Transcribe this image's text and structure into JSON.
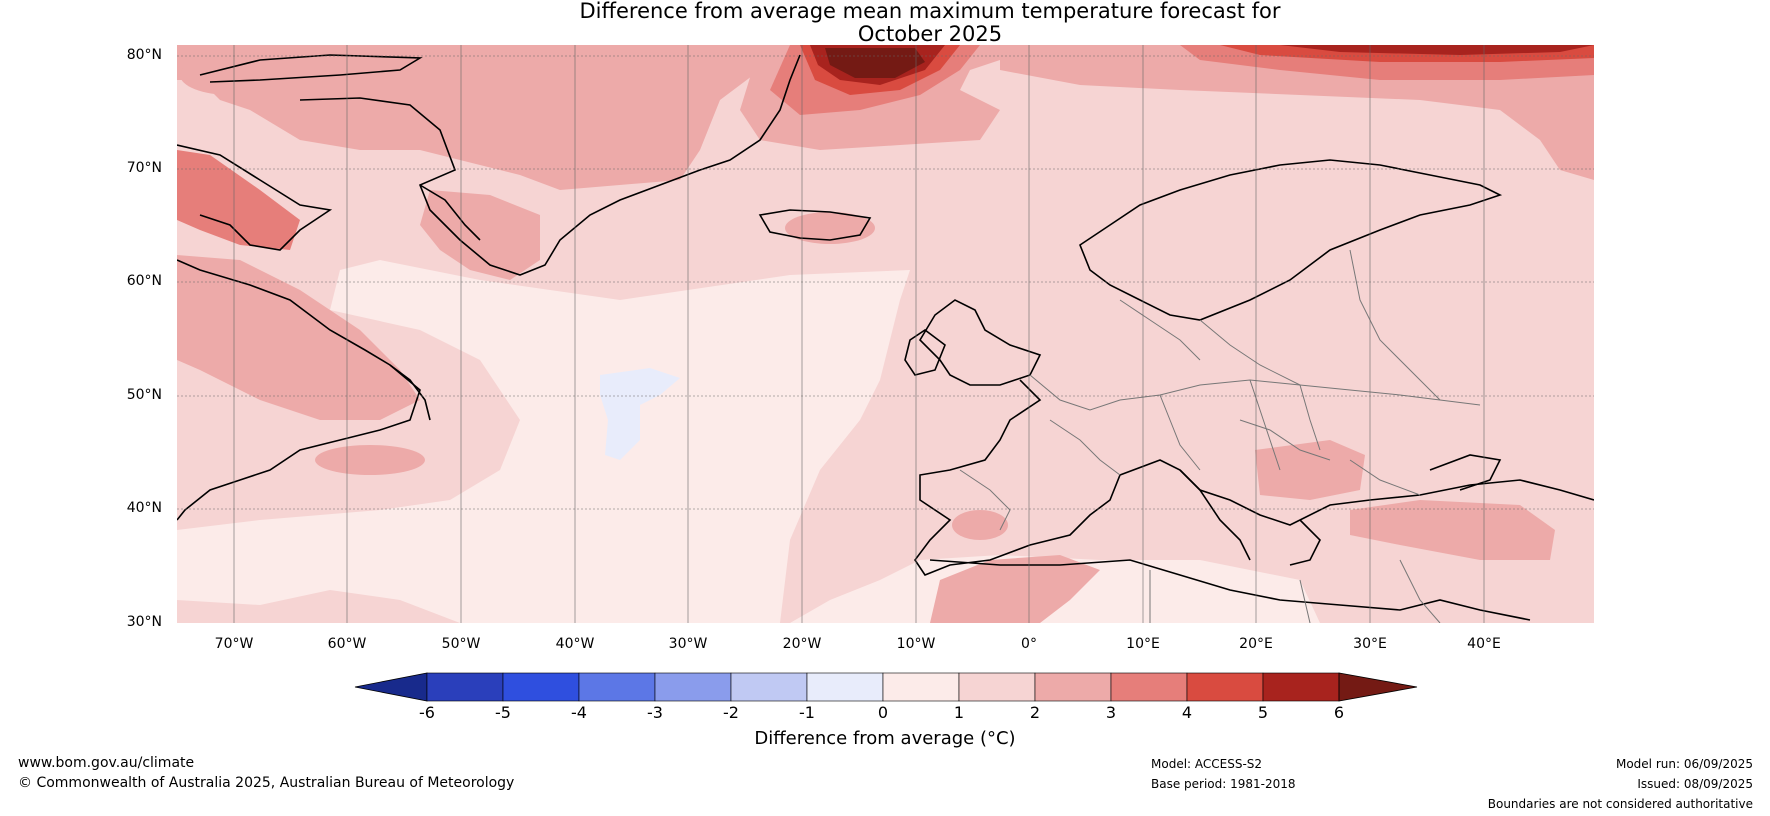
{
  "title_line1": "Difference from average mean maximum temperature forecast for",
  "title_line2": "October 2025",
  "lat_labels": [
    "80°N",
    "70°N",
    "60°N",
    "50°N",
    "40°N",
    "30°N"
  ],
  "lon_labels": [
    "70°W",
    "60°W",
    "50°W",
    "40°W",
    "30°W",
    "20°W",
    "10°W",
    "0°",
    "10°E",
    "20°E",
    "30°E",
    "40°E"
  ],
  "colorbar": {
    "label": "Difference from average (°C)",
    "ticks": [
      "-6",
      "-5",
      "-4",
      "-3",
      "-2",
      "-1",
      "0",
      "1",
      "2",
      "3",
      "4",
      "5",
      "6"
    ],
    "colors": [
      "#182a8c",
      "#2a3fbb",
      "#2f4fdf",
      "#5c77e6",
      "#8a9cec",
      "#c0c9f3",
      "#e8ecfb",
      "#fcebe9",
      "#f6d4d3",
      "#edaaa9",
      "#e67e7a",
      "#d94b40",
      "#a8231e",
      "#741a14"
    ]
  },
  "footer": {
    "website": "www.bom.gov.au/climate",
    "copyright": "© Commonwealth of Australia 2025, Australian Bureau of Meteorology",
    "model": "Model: ACCESS-S2",
    "base_period": "Base period: 1981-2018",
    "model_run": "Model run: 06/09/2025",
    "issued": "Issued: 08/09/2025",
    "disclaimer": "Boundaries are not considered authoritative"
  }
}
